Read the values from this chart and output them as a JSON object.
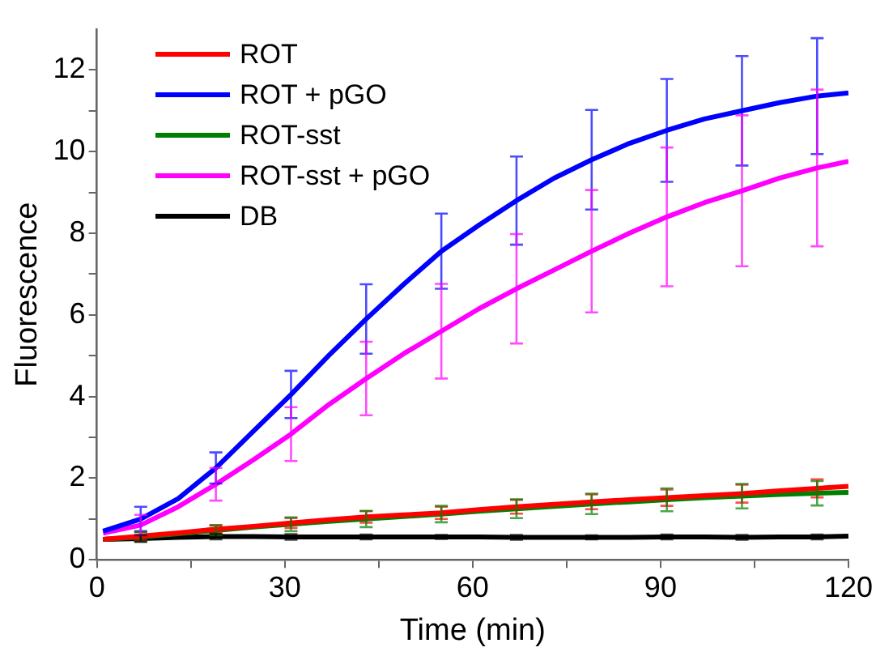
{
  "chart_data": {
    "type": "line",
    "xlabel": "Time (min)",
    "ylabel": "Fluorescence",
    "x": [
      1,
      7,
      13,
      19,
      25,
      31,
      37,
      43,
      49,
      55,
      61,
      67,
      73,
      79,
      85,
      91,
      97,
      103,
      109,
      115,
      120
    ],
    "xlim": [
      0,
      120
    ],
    "xticks": [
      0,
      {
        "value": 15,
        "label": null
      },
      30,
      {
        "value": 45,
        "label": null
      },
      60,
      {
        "value": 75,
        "label": null
      },
      90,
      {
        "value": 105,
        "label": null
      },
      120
    ],
    "ylim": [
      0,
      13
    ],
    "yticks": [
      0,
      {
        "value": 1,
        "label": null
      },
      2,
      {
        "value": 3,
        "label": null
      },
      4,
      {
        "value": 5,
        "label": null
      },
      6,
      {
        "value": 7,
        "label": null
      },
      8,
      {
        "value": 9,
        "label": null
      },
      10,
      {
        "value": 11,
        "label": null
      },
      12
    ],
    "grid": false,
    "legend": "top left",
    "marker": "none",
    "line_style": "solid",
    "series": [
      {
        "name": "ROT",
        "color": "#ff0000",
        "values": [
          0.5,
          0.58,
          0.66,
          0.75,
          0.82,
          0.9,
          0.98,
          1.05,
          1.1,
          1.15,
          1.23,
          1.3,
          1.36,
          1.42,
          1.47,
          1.52,
          1.57,
          1.62,
          1.69,
          1.75,
          1.8
        ],
        "errors": [
          null,
          0.1,
          null,
          0.1,
          null,
          0.12,
          null,
          0.14,
          null,
          0.15,
          null,
          0.17,
          null,
          0.18,
          null,
          0.2,
          null,
          0.22,
          null,
          0.22,
          null
        ]
      },
      {
        "name": "ROT + pGO",
        "color": "#0000ff",
        "values": [
          0.7,
          1.0,
          1.5,
          2.25,
          3.15,
          4.05,
          5.0,
          5.9,
          6.75,
          7.56,
          8.2,
          8.8,
          9.35,
          9.8,
          10.2,
          10.52,
          10.8,
          11.0,
          11.2,
          11.36,
          11.44
        ],
        "errors": [
          null,
          0.3,
          null,
          0.38,
          null,
          0.58,
          null,
          0.85,
          null,
          0.92,
          null,
          1.08,
          null,
          1.22,
          null,
          1.26,
          null,
          1.34,
          null,
          1.42,
          null
        ]
      },
      {
        "name": "ROT-sst",
        "color": "#008000",
        "values": [
          0.5,
          0.56,
          0.64,
          0.72,
          0.8,
          0.87,
          0.94,
          1.0,
          1.06,
          1.12,
          1.19,
          1.25,
          1.31,
          1.37,
          1.42,
          1.47,
          1.52,
          1.56,
          1.6,
          1.63,
          1.65
        ],
        "errors": [
          null,
          0.12,
          null,
          0.12,
          null,
          0.17,
          null,
          0.2,
          null,
          0.2,
          null,
          0.23,
          null,
          0.25,
          null,
          0.28,
          null,
          0.3,
          null,
          0.3,
          null
        ]
      },
      {
        "name": "ROT-sst + pGO",
        "color": "#ff00ff",
        "values": [
          0.65,
          0.85,
          1.3,
          1.85,
          2.45,
          3.08,
          3.8,
          4.44,
          5.05,
          5.6,
          6.15,
          6.64,
          7.1,
          7.56,
          8.0,
          8.4,
          8.75,
          9.04,
          9.35,
          9.6,
          9.76
        ],
        "errors": [
          null,
          0.25,
          null,
          0.4,
          null,
          0.66,
          null,
          0.9,
          null,
          1.16,
          null,
          1.34,
          null,
          1.5,
          null,
          1.7,
          null,
          1.85,
          null,
          1.92,
          null
        ]
      },
      {
        "name": "DB",
        "color": "#000000",
        "values": [
          0.5,
          0.52,
          0.55,
          0.57,
          0.57,
          0.56,
          0.56,
          0.56,
          0.56,
          0.56,
          0.56,
          0.55,
          0.55,
          0.55,
          0.55,
          0.56,
          0.56,
          0.55,
          0.56,
          0.56,
          0.58
        ],
        "errors": [
          null,
          0.08,
          null,
          0.07,
          null,
          0.07,
          null,
          0.06,
          null,
          0.05,
          null,
          0.06,
          null,
          0.05,
          null,
          0.06,
          null,
          0.06,
          null,
          0.06,
          null
        ]
      }
    ]
  }
}
